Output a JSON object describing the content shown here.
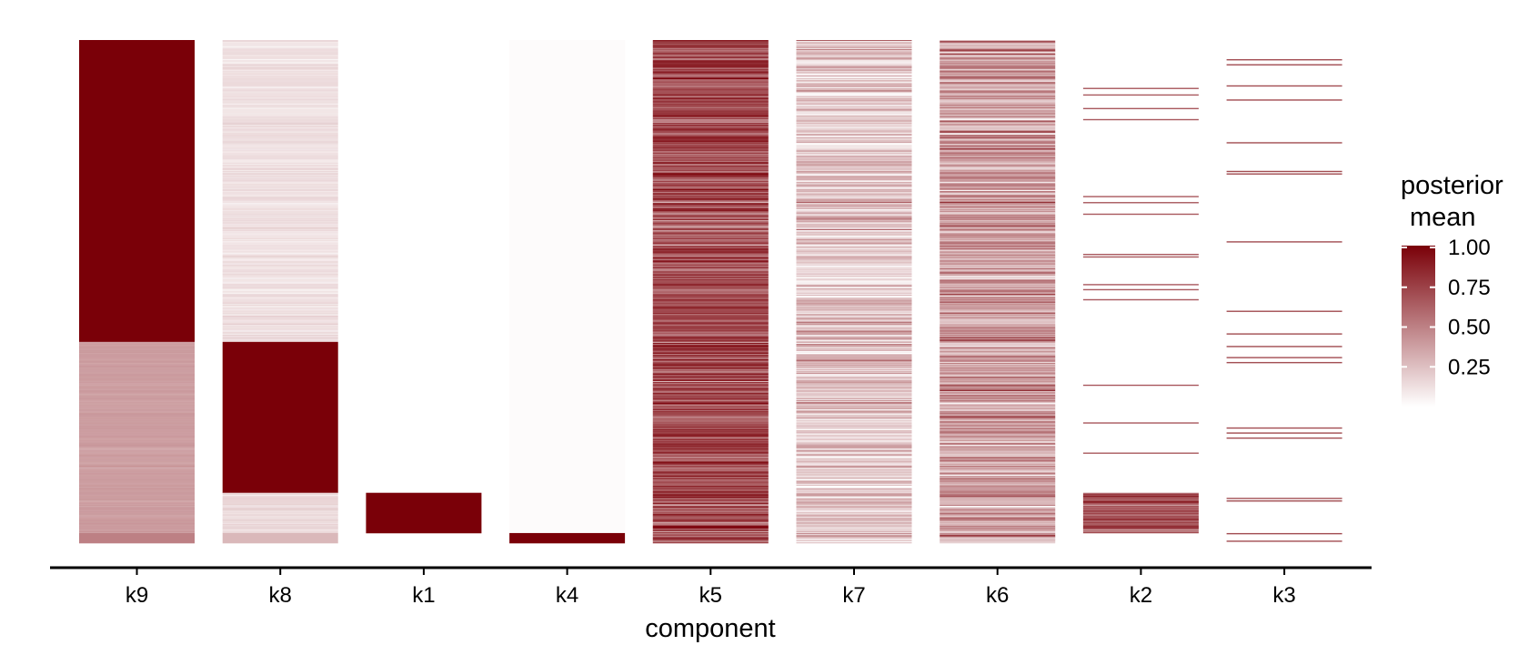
{
  "chart_data": {
    "type": "heatmap",
    "xlabel": "component",
    "ylabel": "",
    "categories": [
      "k9",
      "k8",
      "k1",
      "k4",
      "k5",
      "k7",
      "k6",
      "k2",
      "k3"
    ],
    "rows": 1000,
    "legend": {
      "title_line1": "posterior",
      "title_line2": "mean",
      "placement": "right",
      "ticks": [
        1.0,
        0.75,
        0.5,
        0.25
      ],
      "tick_labels": [
        "1.00",
        "0.75",
        "0.50",
        "0.25"
      ],
      "range": [
        0,
        1
      ]
    },
    "colors": {
      "low": "#ffffff",
      "high": "#7a0008"
    },
    "columns": [
      {
        "name": "k9",
        "segments": [
          {
            "rows": [
              0,
              600
            ],
            "value": 1.0
          },
          {
            "rows": [
              600,
              980
            ],
            "value": 0.38,
            "noise": 0.02
          },
          {
            "rows": [
              980,
              1000
            ],
            "value": 0.5
          }
        ]
      },
      {
        "name": "k8",
        "segments": [
          {
            "rows": [
              0,
              600
            ],
            "value": 0.12,
            "noise": 0.04
          },
          {
            "rows": [
              600,
              900
            ],
            "value": 1.0
          },
          {
            "rows": [
              900,
              980
            ],
            "value": 0.15,
            "noise": 0.04
          },
          {
            "rows": [
              980,
              1000
            ],
            "value": 0.28
          }
        ]
      },
      {
        "name": "k1",
        "segments": [
          {
            "rows": [
              900,
              980
            ],
            "value": 1.0
          }
        ]
      },
      {
        "name": "k4",
        "segments": [
          {
            "rows": [
              0,
              980
            ],
            "value": 0.015
          },
          {
            "rows": [
              980,
              1000
            ],
            "value": 1.0
          }
        ]
      },
      {
        "name": "k5",
        "segments": [
          {
            "rows": [
              0,
              1000
            ],
            "value": 0.7,
            "noise": 0.22
          }
        ]
      },
      {
        "name": "k7",
        "segments": [
          {
            "rows": [
              0,
              1000
            ],
            "value": 0.22,
            "noise": 0.2
          }
        ]
      },
      {
        "name": "k6",
        "segments": [
          {
            "rows": [
              0,
              1000
            ],
            "value": 0.38,
            "noise": 0.22
          }
        ]
      },
      {
        "name": "k2",
        "segments": [
          {
            "rows": [
              900,
              980
            ],
            "value": 0.72,
            "noise": 0.18
          }
        ],
        "lines": {
          "value": 0.65,
          "rows": [
            95,
            108,
            135,
            157,
            310,
            322,
            345,
            425,
            430,
            485,
            495,
            515,
            685,
            760,
            820
          ]
        }
      },
      {
        "name": "k3",
        "segments": [],
        "lines": {
          "value": 0.7,
          "rows": [
            38,
            48,
            90,
            118,
            203,
            260,
            265,
            400,
            538,
            583,
            608,
            630,
            640,
            770,
            780,
            790,
            910,
            915,
            980,
            995
          ]
        }
      }
    ]
  }
}
